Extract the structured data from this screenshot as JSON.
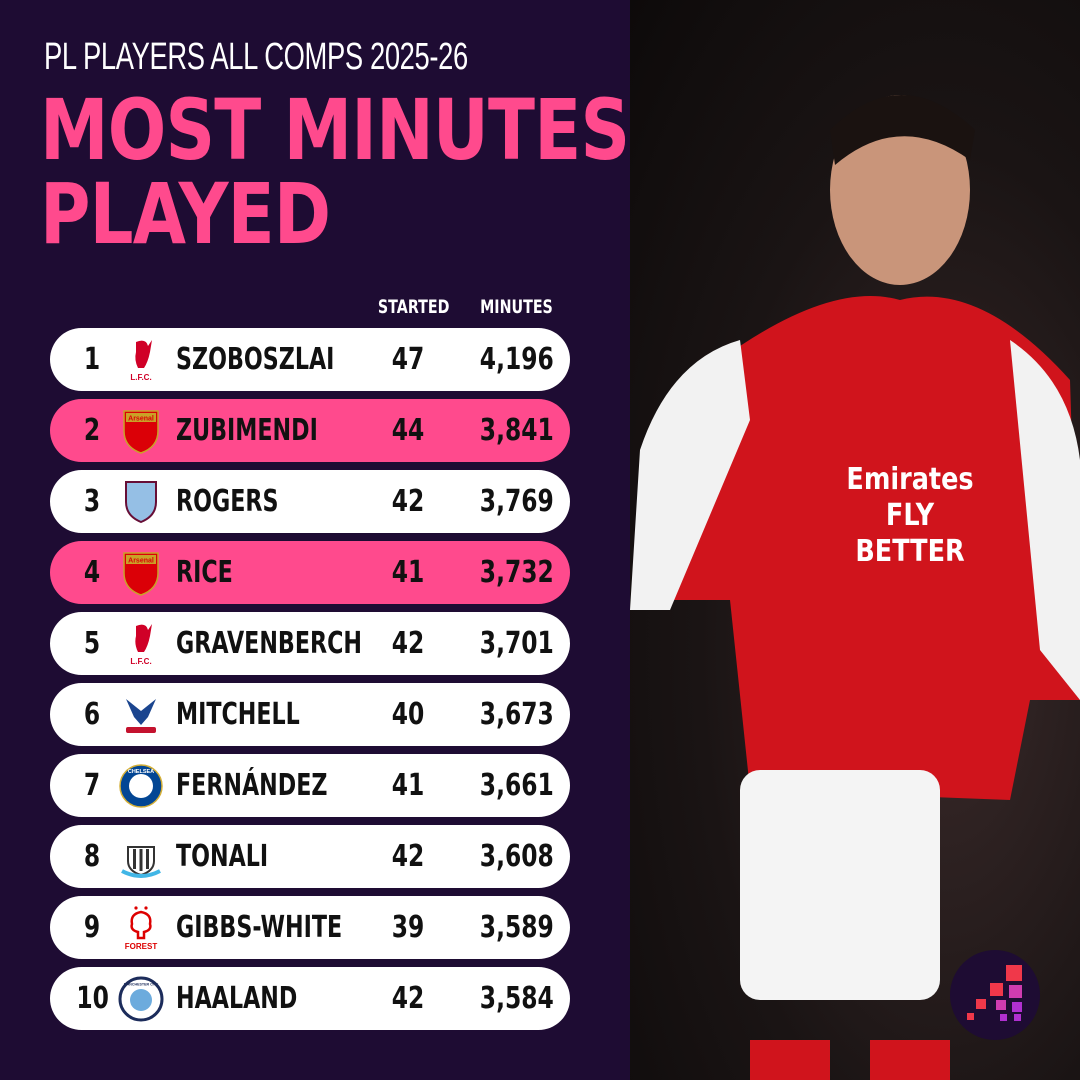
{
  "header": {
    "subtitle": "PL PLAYERS ALL COMPS 2025-26",
    "title_line1": "MOST MINUTES",
    "title_line2": "PLAYED"
  },
  "table": {
    "columns": {
      "started": "STARTED",
      "minutes": "MINUTES"
    },
    "rows": [
      {
        "rank": "1",
        "club": "Liverpool",
        "player": "SZOBOSZLAI",
        "started": "47",
        "minutes": "4,196",
        "highlight": false
      },
      {
        "rank": "2",
        "club": "Arsenal",
        "player": "ZUBIMENDI",
        "started": "44",
        "minutes": "3,841",
        "highlight": true
      },
      {
        "rank": "3",
        "club": "Aston Villa",
        "player": "ROGERS",
        "started": "42",
        "minutes": "3,769",
        "highlight": false
      },
      {
        "rank": "4",
        "club": "Arsenal",
        "player": "RICE",
        "started": "41",
        "minutes": "3,732",
        "highlight": true
      },
      {
        "rank": "5",
        "club": "Liverpool",
        "player": "GRAVENBERCH",
        "started": "42",
        "minutes": "3,701",
        "highlight": false
      },
      {
        "rank": "6",
        "club": "Crystal Palace",
        "player": "MITCHELL",
        "started": "40",
        "minutes": "3,673",
        "highlight": false
      },
      {
        "rank": "7",
        "club": "Chelsea",
        "player": "FERNÁNDEZ",
        "started": "41",
        "minutes": "3,661",
        "highlight": false
      },
      {
        "rank": "8",
        "club": "Newcastle",
        "player": "TONALI",
        "started": "42",
        "minutes": "3,608",
        "highlight": false
      },
      {
        "rank": "9",
        "club": "Nottingham Forest",
        "player": "GIBBS-WHITE",
        "started": "39",
        "minutes": "3,589",
        "highlight": false
      },
      {
        "rank": "10",
        "club": "Manchester City",
        "player": "HAALAND",
        "started": "42",
        "minutes": "3,584",
        "highlight": false
      }
    ]
  },
  "crest_logos": {
    "Liverpool": "L.F.C.",
    "Arsenal": "Arsenal",
    "Nottingham Forest": "FOREST",
    "Chelsea": "CHELSEA",
    "Manchester City": "MANCHESTER CITY"
  },
  "photo": {
    "jersey_sponsor": "Emirates FLY BETTER"
  },
  "colors": {
    "background": "#1e0c33",
    "accent": "#ff4a8d",
    "row": "#ffffff",
    "text": "#111111"
  },
  "icons": {
    "brand": "stepped-bars-logo-icon"
  }
}
